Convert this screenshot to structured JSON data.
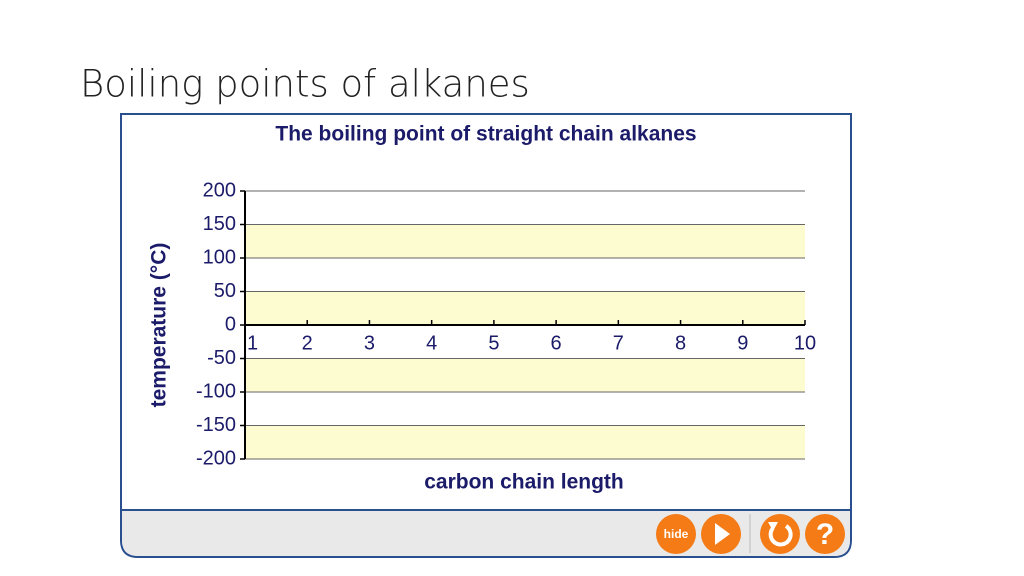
{
  "header": {
    "title": "Boiling points of alkanes"
  },
  "chart_data": {
    "type": "line",
    "title": "The boiling point of straight chain alkanes",
    "xlabel": "carbon chain length",
    "ylabel": "temperature (°C)",
    "xlim": [
      1,
      10
    ],
    "xticks": [
      1,
      2,
      3,
      4,
      5,
      6,
      7,
      8,
      9,
      10
    ],
    "ylim": [
      -200,
      200
    ],
    "yticks": [
      -200,
      -150,
      -100,
      -50,
      0,
      50,
      100,
      150,
      200
    ],
    "grid": true,
    "band_color": "#fdfbd0"
  },
  "controls": {
    "hide": "hide",
    "help": "?"
  }
}
